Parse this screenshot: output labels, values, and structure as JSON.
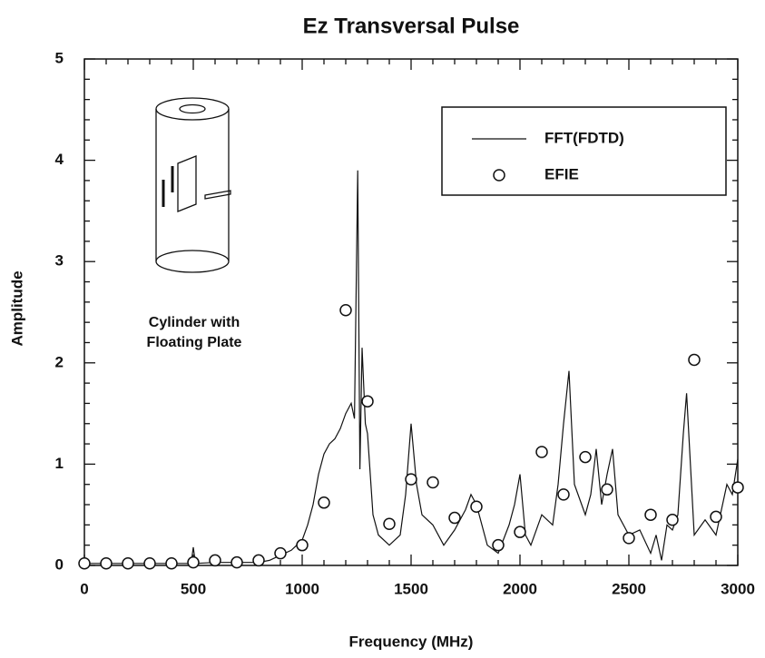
{
  "chart_data": {
    "type": "line",
    "title": "Ez Transversal Pulse",
    "x_label": "Frequency (MHz)",
    "y_label": "Amplitude",
    "annotations": [
      "Cylinder with",
      "Floating Plate"
    ],
    "xlim": [
      0,
      3000
    ],
    "ylim": [
      0,
      5
    ],
    "xticks": [
      0,
      500,
      1000,
      1500,
      2000,
      2500,
      3000
    ],
    "yticks": [
      0,
      1,
      2,
      3,
      4,
      5
    ],
    "xminorticks": [
      100,
      200,
      300,
      400,
      600,
      700,
      800,
      900,
      1100,
      1200,
      1300,
      1400,
      1600,
      1700,
      1800,
      1900,
      2100,
      2200,
      2300,
      2400,
      2600,
      2700,
      2800,
      2900
    ],
    "yminorticks": [
      0.2,
      0.4,
      0.6,
      0.8,
      1.2,
      1.4,
      1.6,
      1.8,
      2.2,
      2.4,
      2.6,
      2.8,
      3.2,
      3.4,
      3.6,
      3.8,
      4.2,
      4.4,
      4.6,
      4.8
    ],
    "series": [
      {
        "name": "FFT(FDTD)",
        "type": "line",
        "color": "#111111",
        "x": [
          0,
          100,
          200,
          300,
          400,
          490,
          500,
          510,
          600,
          700,
          800,
          850,
          900,
          950,
          1000,
          1025,
          1050,
          1075,
          1100,
          1125,
          1150,
          1175,
          1200,
          1225,
          1240,
          1255,
          1265,
          1275,
          1290,
          1300,
          1325,
          1350,
          1400,
          1450,
          1475,
          1500,
          1525,
          1550,
          1600,
          1650,
          1700,
          1750,
          1775,
          1800,
          1850,
          1900,
          1950,
          1975,
          2000,
          2025,
          2050,
          2100,
          2150,
          2175,
          2200,
          2225,
          2250,
          2300,
          2325,
          2350,
          2375,
          2400,
          2425,
          2450,
          2500,
          2550,
          2600,
          2625,
          2650,
          2675,
          2700,
          2725,
          2750,
          2765,
          2780,
          2800,
          2850,
          2900,
          2950,
          2975,
          3000
        ],
        "values": [
          0.02,
          0.02,
          0.02,
          0.02,
          0.02,
          0.02,
          0.18,
          0.02,
          0.03,
          0.03,
          0.03,
          0.05,
          0.1,
          0.15,
          0.25,
          0.4,
          0.6,
          0.9,
          1.1,
          1.2,
          1.25,
          1.35,
          1.5,
          1.6,
          1.45,
          3.9,
          0.95,
          2.15,
          1.4,
          1.3,
          0.5,
          0.3,
          0.2,
          0.3,
          0.7,
          1.4,
          0.8,
          0.5,
          0.4,
          0.2,
          0.35,
          0.55,
          0.7,
          0.6,
          0.2,
          0.12,
          0.4,
          0.6,
          0.9,
          0.3,
          0.2,
          0.5,
          0.4,
          0.8,
          1.4,
          1.92,
          0.8,
          0.5,
          0.7,
          1.15,
          0.6,
          0.9,
          1.15,
          0.5,
          0.3,
          0.35,
          0.12,
          0.3,
          0.05,
          0.4,
          0.35,
          0.5,
          1.3,
          1.7,
          1.1,
          0.3,
          0.45,
          0.3,
          0.8,
          0.7,
          1.05
        ]
      },
      {
        "name": "EFIE",
        "type": "scatter",
        "color": "#111111",
        "x": [
          0,
          100,
          200,
          300,
          400,
          500,
          600,
          700,
          800,
          900,
          1000,
          1100,
          1200,
          1300,
          1400,
          1500,
          1600,
          1700,
          1800,
          1900,
          2000,
          2100,
          2200,
          2300,
          2400,
          2500,
          2600,
          2700,
          2800,
          2900,
          3000
        ],
        "values": [
          0.02,
          0.02,
          0.02,
          0.02,
          0.02,
          0.03,
          0.05,
          0.03,
          0.05,
          0.12,
          0.2,
          0.62,
          2.52,
          1.62,
          0.41,
          0.85,
          0.82,
          0.47,
          0.58,
          0.2,
          0.33,
          1.12,
          0.7,
          1.07,
          0.75,
          0.27,
          0.5,
          0.45,
          2.03,
          0.48,
          0.77
        ]
      }
    ]
  }
}
